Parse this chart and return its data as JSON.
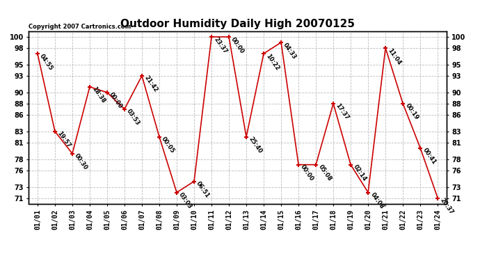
{
  "title": "Outdoor Humidity Daily High 20070125",
  "copyright": "Copyright 2007 Cartronics.com",
  "x_labels": [
    "01/01",
    "01/02",
    "01/03",
    "01/04",
    "01/05",
    "01/06",
    "01/07",
    "01/08",
    "01/09",
    "01/10",
    "01/11",
    "01/12",
    "01/13",
    "01/14",
    "01/15",
    "01/16",
    "01/17",
    "01/18",
    "01/19",
    "01/20",
    "01/21",
    "01/22",
    "01/23",
    "01/24"
  ],
  "y_values": [
    97,
    83,
    79,
    91,
    90,
    87,
    93,
    82,
    72,
    74,
    100,
    100,
    82,
    97,
    99,
    77,
    77,
    88,
    77,
    72,
    98,
    88,
    80,
    71
  ],
  "labels": [
    "04:55",
    "19:57",
    "00:30",
    "18:38",
    "00:00",
    "03:53",
    "21:42",
    "00:05",
    "03:03",
    "06:51",
    "23:37",
    "00:00",
    "25:40",
    "10:22",
    "04:33",
    "00:00",
    "05:08",
    "17:37",
    "02:14",
    "04:08",
    "11:04",
    "00:19",
    "00:41",
    "20:37"
  ],
  "line_color": "#cc0000",
  "marker_color": "#cc0000",
  "bg_color": "#ffffff",
  "grid_color": "#bbbbbb",
  "title_fontsize": 11,
  "label_fontsize": 6,
  "copyright_fontsize": 6,
  "tick_fontsize": 7,
  "ylim": [
    70,
    101
  ],
  "yticks": [
    71,
    73,
    76,
    78,
    81,
    83,
    86,
    88,
    90,
    93,
    95,
    98,
    100
  ]
}
